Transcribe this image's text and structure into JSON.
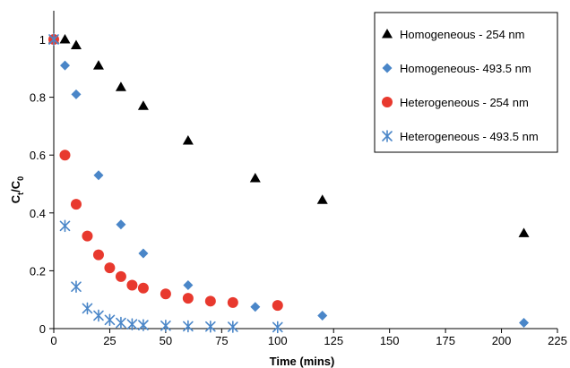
{
  "chart_data": {
    "type": "scatter",
    "xlabel": "Time (mins)",
    "ylabel_main": "C",
    "ylabel_sub1": "t",
    "ylabel_sep": "/C",
    "ylabel_sub2": "0",
    "xlim": [
      0,
      225
    ],
    "ylim": [
      0,
      1.0
    ],
    "x_ticks": [
      0,
      25,
      50,
      75,
      100,
      125,
      150,
      175,
      200,
      225
    ],
    "y_ticks": [
      0,
      0.2,
      0.4,
      0.6,
      0.8,
      1
    ],
    "x_tick_labels": [
      "0",
      "25",
      "50",
      "75",
      "100",
      "125",
      "150",
      "175",
      "200",
      "225"
    ],
    "y_tick_labels": [
      "0",
      "0.2",
      "0.4",
      "0.6",
      "0.8",
      "1"
    ],
    "grid": false,
    "legend_position": "top-right",
    "series": [
      {
        "name": "Homogeneous - 254 nm",
        "marker": "triangle",
        "color": "#000000",
        "points": [
          [
            0,
            1.0
          ],
          [
            5,
            1.0
          ],
          [
            10,
            0.98
          ],
          [
            20,
            0.91
          ],
          [
            30,
            0.835
          ],
          [
            40,
            0.77
          ],
          [
            60,
            0.65
          ],
          [
            90,
            0.52
          ],
          [
            120,
            0.445
          ],
          [
            210,
            0.33
          ]
        ]
      },
      {
        "name": "Homogeneous- 493.5 nm",
        "marker": "diamond",
        "color": "#4a86c8",
        "points": [
          [
            0,
            1.0
          ],
          [
            5,
            0.91
          ],
          [
            10,
            0.81
          ],
          [
            20,
            0.53
          ],
          [
            30,
            0.36
          ],
          [
            40,
            0.26
          ],
          [
            60,
            0.15
          ],
          [
            90,
            0.075
          ],
          [
            120,
            0.045
          ],
          [
            210,
            0.02
          ]
        ]
      },
      {
        "name": "Heterogeneous - 254 nm",
        "marker": "circle",
        "color": "#e8392e",
        "points": [
          [
            0,
            1.0
          ],
          [
            5,
            0.6
          ],
          [
            10,
            0.43
          ],
          [
            15,
            0.32
          ],
          [
            20,
            0.255
          ],
          [
            25,
            0.21
          ],
          [
            30,
            0.18
          ],
          [
            35,
            0.15
          ],
          [
            40,
            0.14
          ],
          [
            50,
            0.12
          ],
          [
            60,
            0.105
          ],
          [
            70,
            0.095
          ],
          [
            80,
            0.09
          ],
          [
            100,
            0.08
          ]
        ]
      },
      {
        "name": "Heterogeneous - 493.5 nm",
        "marker": "asterisk",
        "color": "#4a86c8",
        "points": [
          [
            0,
            1.0
          ],
          [
            5,
            0.355
          ],
          [
            10,
            0.145
          ],
          [
            15,
            0.07
          ],
          [
            20,
            0.045
          ],
          [
            25,
            0.03
          ],
          [
            30,
            0.02
          ],
          [
            35,
            0.015
          ],
          [
            40,
            0.012
          ],
          [
            50,
            0.01
          ],
          [
            60,
            0.008
          ],
          [
            70,
            0.007
          ],
          [
            80,
            0.006
          ],
          [
            100,
            0.005
          ]
        ]
      }
    ]
  }
}
